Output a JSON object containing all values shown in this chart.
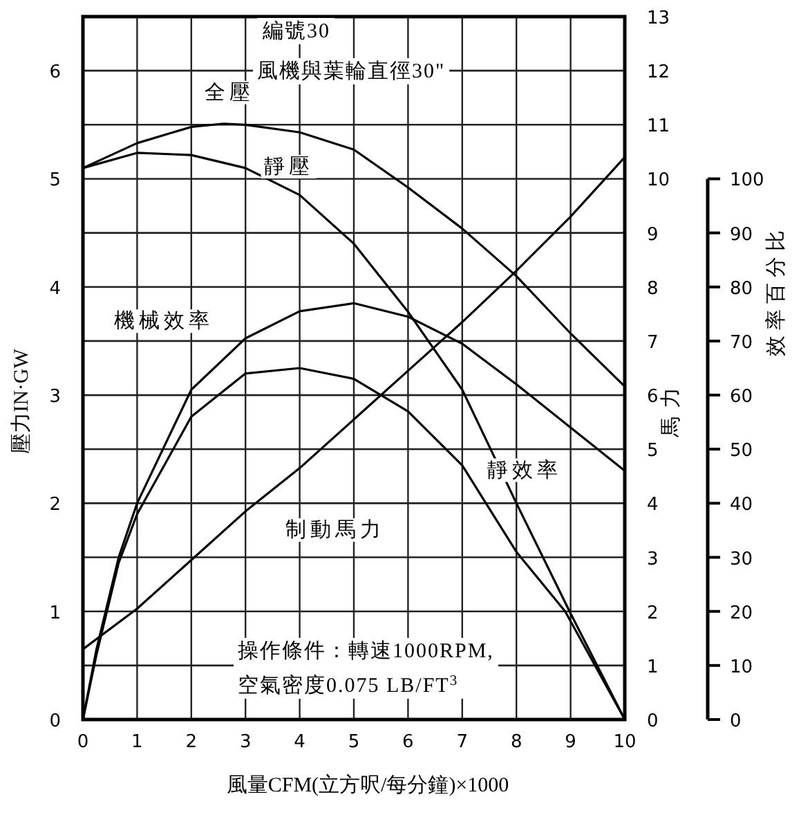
{
  "chart_data": {
    "type": "line",
    "xlabel": "風量CFM(立方呎/每分鐘)×1000",
    "ylabel": "壓力IN·GW",
    "y2label": "馬力",
    "y3label": "效率百分比",
    "xlim": [
      0,
      10
    ],
    "xticks": [
      0,
      1,
      2,
      3,
      4,
      5,
      6,
      7,
      8,
      9,
      10
    ],
    "ylim": [
      0,
      6.5
    ],
    "yticks": [
      0,
      1,
      2,
      3,
      4,
      5,
      6
    ],
    "y2lim": [
      0,
      13
    ],
    "y2ticks": [
      0,
      1,
      2,
      3,
      4,
      5,
      6,
      7,
      8,
      9,
      10,
      11,
      12,
      13
    ],
    "y3lim": [
      0,
      130
    ],
    "y3ticks": [
      0,
      10,
      20,
      30,
      40,
      50,
      60,
      70,
      80,
      90,
      100
    ],
    "grid": true,
    "series": [
      {
        "name": "全壓",
        "color": "#000000",
        "x": [
          0,
          1,
          2,
          2.6,
          3,
          4,
          5,
          6,
          7,
          8,
          9,
          10
        ],
        "values": [
          5.1,
          5.33,
          5.48,
          5.51,
          5.5,
          5.43,
          5.27,
          4.92,
          4.54,
          4.1,
          3.57,
          3.08
        ]
      },
      {
        "name": "靜壓",
        "color": "#000000",
        "x": [
          0,
          1,
          2,
          3,
          4,
          5,
          6,
          7,
          8,
          9,
          10
        ],
        "values": [
          5.1,
          5.24,
          5.22,
          5.1,
          4.85,
          4.4,
          3.77,
          3.05,
          2.0,
          0.98,
          0
        ]
      },
      {
        "name": "機械效率",
        "color": "#000000",
        "axis": "y3",
        "x": [
          0,
          0.25,
          0.66,
          1,
          2,
          3,
          4,
          5,
          6,
          7,
          8,
          9,
          10
        ],
        "values": [
          0,
          13,
          30,
          40,
          61,
          70.5,
          75.5,
          77,
          74.5,
          69.5,
          62,
          54,
          46
        ]
      },
      {
        "name": "靜效率",
        "color": "#000000",
        "axis": "y3",
        "x": [
          0,
          0.25,
          0.66,
          1,
          2,
          3,
          4,
          5,
          6,
          7,
          8,
          8.9,
          10
        ],
        "values": [
          0,
          12,
          29,
          38,
          56,
          64,
          65,
          63,
          57,
          47,
          31,
          20,
          0
        ]
      },
      {
        "name": "制動馬力",
        "color": "#000000",
        "axis": "y2",
        "x": [
          0,
          1,
          2,
          3,
          4,
          5,
          6,
          7,
          8,
          9,
          10
        ],
        "values": [
          1.3,
          2.05,
          2.95,
          3.85,
          4.65,
          5.55,
          6.45,
          7.35,
          8.3,
          9.3,
          10.4
        ]
      }
    ],
    "annotations": [
      "編號30",
      "風機與葉輪直徑30\"",
      "操作條件：轉速1000RPM,\n空氣密度0.075 LB/FT$^{3}$"
    ]
  }
}
